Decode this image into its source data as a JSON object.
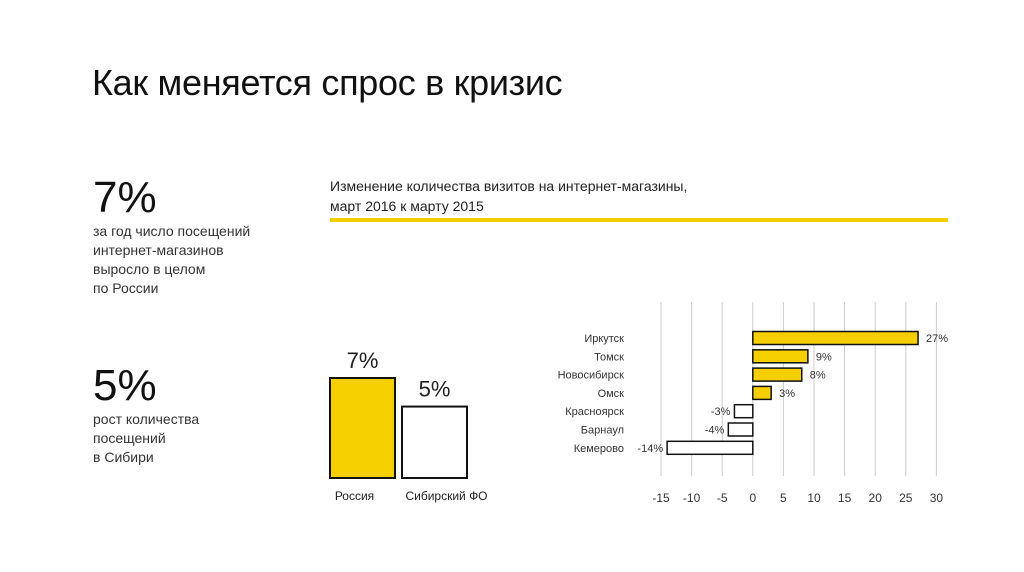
{
  "header": {
    "title": "Как меняется спрос в кризис"
  },
  "stats": [
    {
      "value": "7%",
      "text": [
        "за год число посещений",
        "интернет-магазинов",
        "выросло в целом",
        "по России"
      ]
    },
    {
      "value": "5%",
      "text": [
        "рост количества",
        "посещений",
        "в Сибири"
      ]
    }
  ],
  "chart_header": {
    "line1": "Изменение количества визитов на интернет-магазины,",
    "line2": "март 2016 к марту 2015"
  },
  "colors": {
    "accent": "#f5cf00",
    "bar_outline": "#111111",
    "axis": "#cccccc"
  },
  "chart_data": [
    {
      "type": "bar",
      "categories": [
        "Россия",
        "Сибирский ФО"
      ],
      "values": [
        7,
        5
      ],
      "value_labels": [
        "7%",
        "5%"
      ],
      "ylim": [
        0,
        8
      ]
    },
    {
      "type": "bar",
      "orientation": "horizontal",
      "categories": [
        "Иркутск",
        "Томск",
        "Новосибирск",
        "Омск",
        "Красноярск",
        "Барнаул",
        "Кемерово"
      ],
      "values": [
        27,
        9,
        8,
        3,
        -3,
        -4,
        -14
      ],
      "value_labels": [
        "27%",
        "9%",
        "8%",
        "3%",
        "-3%",
        "-4%",
        "-14%"
      ],
      "xlim": [
        -15,
        30
      ],
      "xticks": [
        -15,
        -10,
        -5,
        0,
        5,
        10,
        15,
        20,
        25,
        30
      ],
      "grid": true
    }
  ]
}
